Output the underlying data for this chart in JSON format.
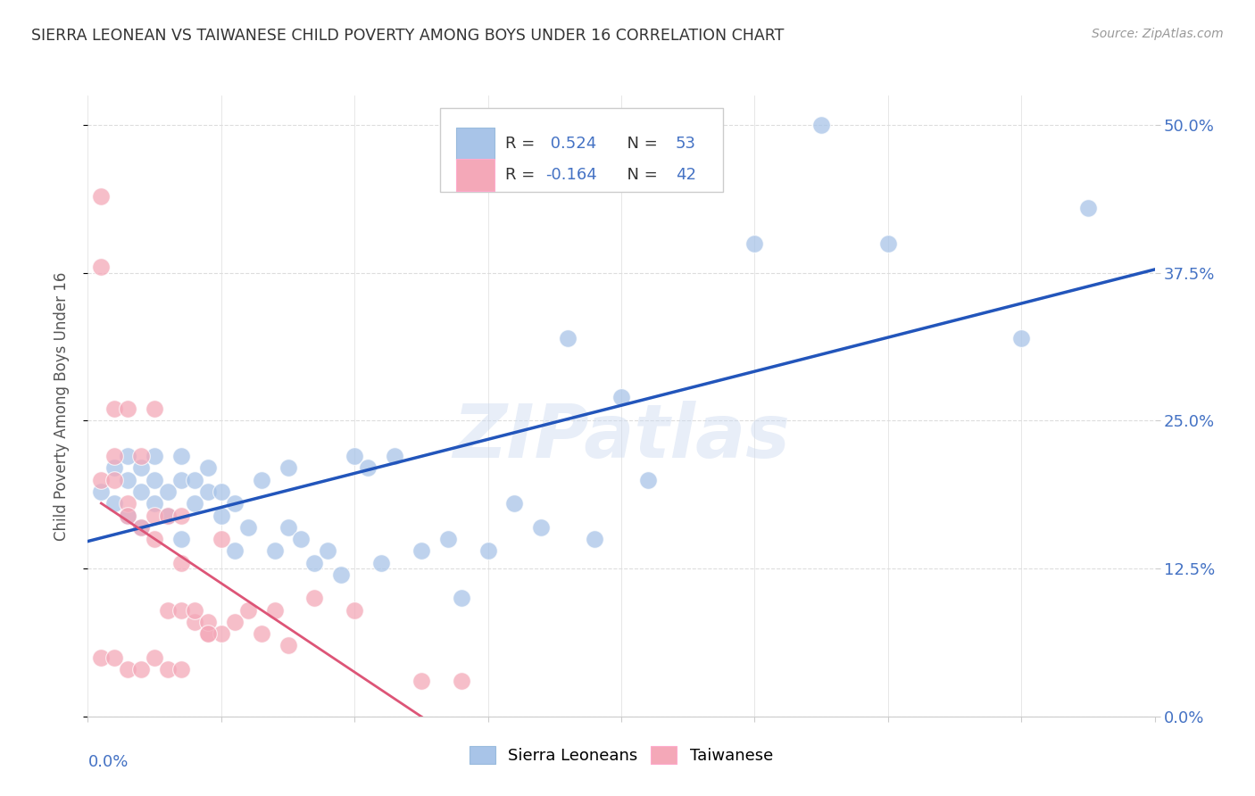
{
  "title": "SIERRA LEONEAN VS TAIWANESE CHILD POVERTY AMONG BOYS UNDER 16 CORRELATION CHART",
  "source": "Source: ZipAtlas.com",
  "ylabel": "Child Poverty Among Boys Under 16",
  "ytick_labels": [
    "0.0%",
    "12.5%",
    "25.0%",
    "37.5%",
    "50.0%"
  ],
  "ytick_values": [
    0.0,
    0.125,
    0.25,
    0.375,
    0.5
  ],
  "xlim": [
    0.0,
    0.08
  ],
  "ylim": [
    0.0,
    0.525
  ],
  "watermark": "ZIPatlas",
  "blue_R": 0.524,
  "blue_N": 53,
  "pink_R": -0.164,
  "pink_N": 42,
  "legend_label_blue": "Sierra Leoneans",
  "legend_label_pink": "Taiwanese",
  "blue_color": "#a8c4e8",
  "pink_color": "#f4a8b8",
  "blue_line_color": "#2255bb",
  "pink_line_color": "#dd5577",
  "axis_label_color": "#4472c4",
  "blue_scatter_x": [
    0.001,
    0.002,
    0.002,
    0.003,
    0.003,
    0.003,
    0.004,
    0.004,
    0.004,
    0.005,
    0.005,
    0.005,
    0.006,
    0.006,
    0.007,
    0.007,
    0.007,
    0.008,
    0.008,
    0.009,
    0.009,
    0.01,
    0.01,
    0.011,
    0.011,
    0.012,
    0.013,
    0.014,
    0.015,
    0.015,
    0.016,
    0.017,
    0.018,
    0.019,
    0.02,
    0.021,
    0.022,
    0.023,
    0.025,
    0.027,
    0.028,
    0.03,
    0.032,
    0.034,
    0.036,
    0.038,
    0.04,
    0.042,
    0.05,
    0.055,
    0.06,
    0.07,
    0.075
  ],
  "blue_scatter_y": [
    0.19,
    0.21,
    0.18,
    0.2,
    0.17,
    0.22,
    0.19,
    0.21,
    0.16,
    0.18,
    0.2,
    0.22,
    0.17,
    0.19,
    0.2,
    0.22,
    0.15,
    0.18,
    0.2,
    0.19,
    0.21,
    0.17,
    0.19,
    0.18,
    0.14,
    0.16,
    0.2,
    0.14,
    0.16,
    0.21,
    0.15,
    0.13,
    0.14,
    0.12,
    0.22,
    0.21,
    0.13,
    0.22,
    0.14,
    0.15,
    0.1,
    0.14,
    0.18,
    0.16,
    0.32,
    0.15,
    0.27,
    0.2,
    0.4,
    0.5,
    0.4,
    0.32,
    0.43
  ],
  "pink_scatter_x": [
    0.001,
    0.001,
    0.001,
    0.002,
    0.002,
    0.002,
    0.003,
    0.003,
    0.003,
    0.004,
    0.004,
    0.005,
    0.005,
    0.005,
    0.006,
    0.006,
    0.007,
    0.007,
    0.007,
    0.008,
    0.008,
    0.009,
    0.009,
    0.01,
    0.01,
    0.011,
    0.012,
    0.013,
    0.014,
    0.015,
    0.017,
    0.02,
    0.001,
    0.002,
    0.003,
    0.004,
    0.005,
    0.006,
    0.007,
    0.009,
    0.025,
    0.028
  ],
  "pink_scatter_y": [
    0.44,
    0.38,
    0.2,
    0.26,
    0.22,
    0.2,
    0.18,
    0.17,
    0.26,
    0.16,
    0.22,
    0.15,
    0.17,
    0.26,
    0.09,
    0.17,
    0.09,
    0.13,
    0.17,
    0.08,
    0.09,
    0.07,
    0.08,
    0.07,
    0.15,
    0.08,
    0.09,
    0.07,
    0.09,
    0.06,
    0.1,
    0.09,
    0.05,
    0.05,
    0.04,
    0.04,
    0.05,
    0.04,
    0.04,
    0.07,
    0.03,
    0.03
  ]
}
